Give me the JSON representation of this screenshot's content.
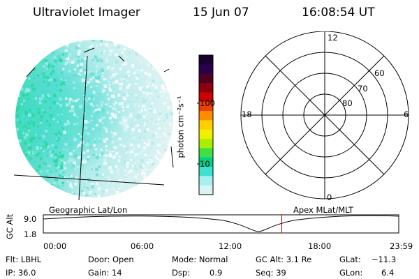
{
  "header": {
    "title": "Ultraviolet Imager",
    "date": "15 Jun 07",
    "time": "16:08:54 UT"
  },
  "colorbar": {
    "unit_label": "photon cm⁻²s⁻¹",
    "tick_labels": [
      "100",
      "10"
    ],
    "colors": [
      "#1a0030",
      "#2b004a",
      "#500020",
      "#8a0010",
      "#c80000",
      "#ee4000",
      "#ff8c00",
      "#ffd000",
      "#f0f000",
      "#a8f000",
      "#40e040",
      "#00d08a",
      "#40e0d0",
      "#a8f0f0",
      "#d8f4f4"
    ]
  },
  "polar": {
    "mlt_labels": {
      "top": "12",
      "left": "18",
      "right": "6",
      "bottom": "0"
    },
    "lat_labels": [
      "60",
      "70",
      "80"
    ]
  },
  "timeline": {
    "left_label": "Geographic Lat/Lon",
    "right_label": "Apex MLat/MLT",
    "axis_title": "GC Alt",
    "y_ticks": [
      "9.0",
      "1.8"
    ],
    "x_ticks": [
      "00:00",
      "06:00",
      "12:00",
      "18:00",
      "23:59"
    ],
    "current_time_fraction": 0.671,
    "marker_color": "#c00000"
  },
  "status": {
    "flt": "Flt: LBHL",
    "ip": "IP: 36.0",
    "door": "Door: Open",
    "gain": "Gain: 14",
    "mode": "Mode: Normal",
    "dsp_label": "Dsp:",
    "dsp_value": "0.9",
    "gc_alt": "GC Alt: 3.1 Re",
    "seq": "Seq: 39",
    "glat_label": "GLat:",
    "glat_value": "−11.3",
    "glon_label": "GLon:",
    "glon_value": "6.4"
  }
}
